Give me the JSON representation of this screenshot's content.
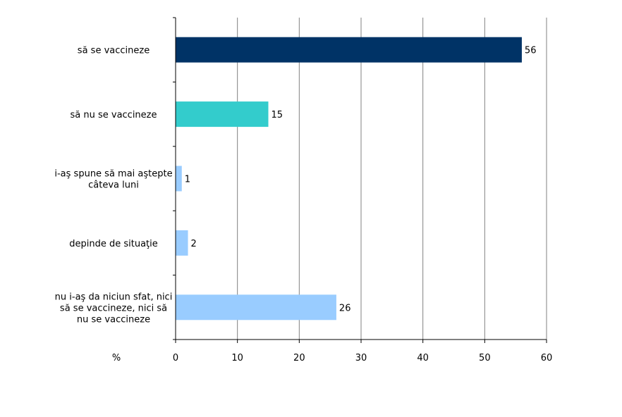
{
  "chart_data": {
    "type": "bar",
    "orientation": "horizontal",
    "categories": [
      [
        "să se vaccineze"
      ],
      [
        "să nu se vaccineze"
      ],
      [
        "i-aş spune să mai aştepte",
        "câteva luni"
      ],
      [
        "depinde de situaţie"
      ],
      [
        "nu i-aş da niciun sfat, nici",
        "să se vaccineze, nici să",
        "nu se vaccineze"
      ]
    ],
    "values": [
      56,
      15,
      1,
      2,
      26
    ],
    "value_labels": [
      "56",
      "15",
      "1",
      "2",
      "26"
    ],
    "colors": [
      "#003366",
      "#33CCCC",
      "#99CCFF",
      "#99CCFF",
      "#99CCFF"
    ],
    "xlim": [
      0,
      60
    ],
    "xticks": [
      0,
      10,
      20,
      30,
      40,
      50,
      60
    ],
    "xtick_labels": [
      "0",
      "10",
      "20",
      "30",
      "40",
      "50",
      "60"
    ],
    "xlabel": "%",
    "grid": true,
    "gridline_color": "#808080"
  }
}
